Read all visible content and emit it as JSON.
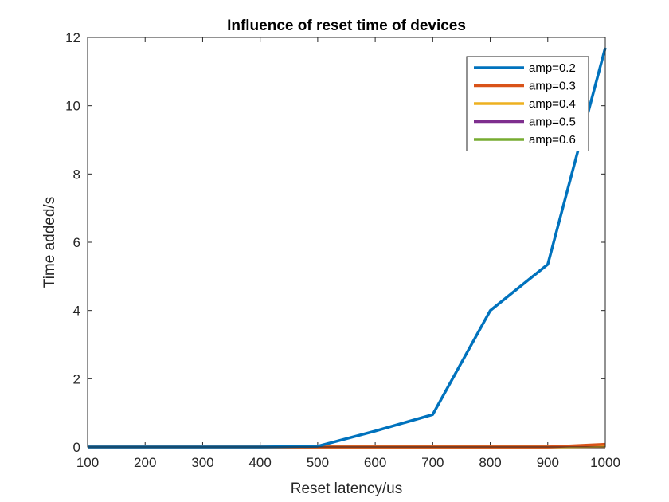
{
  "chart_data": {
    "type": "line",
    "title": "Influence of reset time of devices",
    "xlabel": "Reset latency/us",
    "ylabel": "Time added/s",
    "x": [
      100,
      200,
      300,
      400,
      500,
      600,
      700,
      800,
      900,
      1000
    ],
    "xlim": [
      100,
      1000
    ],
    "ylim": [
      0,
      12
    ],
    "xticks": [
      "100",
      "200",
      "300",
      "400",
      "500",
      "600",
      "700",
      "800",
      "900",
      "1000"
    ],
    "yticks": [
      "0",
      "2",
      "4",
      "6",
      "8",
      "10",
      "12"
    ],
    "grid": false,
    "legend_position": "top-right",
    "series": [
      {
        "name": "amp=0.2",
        "color": "#0072BD",
        "values": [
          0,
          0,
          0,
          0,
          0.02,
          0.47,
          0.95,
          4.0,
          5.35,
          11.7
        ]
      },
      {
        "name": "amp=0.3",
        "color": "#D95319",
        "values": [
          0,
          0,
          0,
          0,
          0,
          0,
          0,
          0,
          0,
          0.08
        ]
      },
      {
        "name": "amp=0.4",
        "color": "#EDB120",
        "values": [
          0,
          0,
          0,
          0,
          0,
          0,
          0,
          0,
          0,
          0.02
        ]
      },
      {
        "name": "amp=0.5",
        "color": "#7E2F8E",
        "values": [
          0,
          0,
          0,
          0,
          0,
          0,
          0,
          0,
          0,
          0.01
        ]
      },
      {
        "name": "amp=0.6",
        "color": "#77AC30",
        "values": [
          0,
          0,
          0,
          0,
          0,
          0,
          0,
          0,
          0,
          0
        ]
      }
    ]
  }
}
